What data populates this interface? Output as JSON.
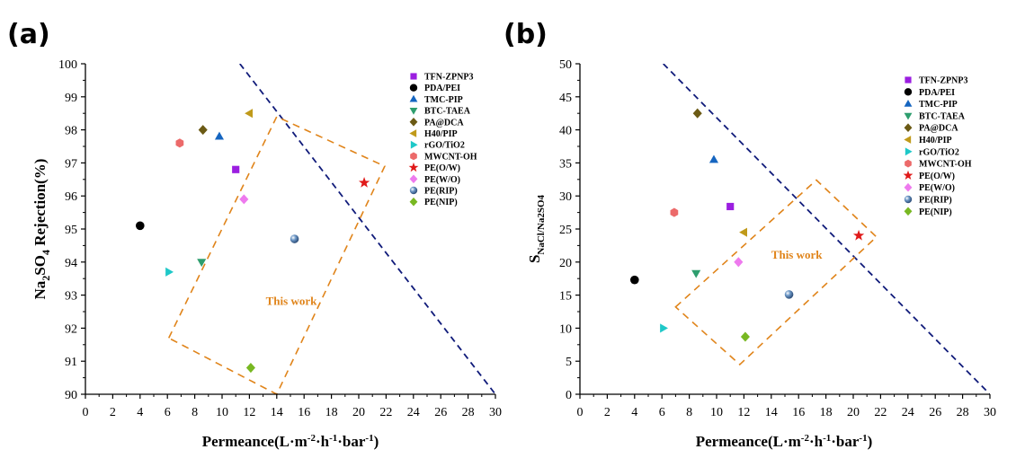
{
  "figure": {
    "legend_entries": [
      {
        "name": "TFN-ZPNP3",
        "color": "#9b1ee0",
        "marker": "square"
      },
      {
        "name": "PDA/PEI",
        "color": "#000000",
        "marker": "circle"
      },
      {
        "name": "TMC-PIP",
        "color": "#1565c0",
        "marker": "triangle-up"
      },
      {
        "name": "BTC-TAEA",
        "color": "#2e9e6e",
        "marker": "triangle-down"
      },
      {
        "name": "PA@DCA",
        "color": "#6b5a14",
        "marker": "diamond"
      },
      {
        "name": "H40/PIP",
        "color": "#c09a1a",
        "marker": "triangle-left"
      },
      {
        "name": "rGO/TiO2",
        "color": "#1ec8c8",
        "marker": "triangle-right"
      },
      {
        "name": "MWCNT-OH",
        "color": "#ec6a6a",
        "marker": "hexagon"
      },
      {
        "name": "PE(O/W)",
        "color": "#e01a1a",
        "marker": "star"
      },
      {
        "name": "PE(W/O)",
        "color": "#ee7aee",
        "marker": "diamond"
      },
      {
        "name": "PE(RIP)",
        "color": "#6c97c6",
        "marker": "sphere"
      },
      {
        "name": "PE(NIP)",
        "color": "#78b822",
        "marker": "diamond"
      }
    ],
    "dashed_line_color": "#101b7a",
    "box_color": "#e0841a"
  },
  "chart_data": [
    {
      "panel": "(a)",
      "type": "scatter",
      "xlabel": "Permeance(L·m⁻²·h⁻¹·bar⁻¹)",
      "ylabel": "Na₂SO₄ Rejection(%)",
      "xlim": [
        0,
        30
      ],
      "ylim": [
        90,
        100
      ],
      "xticks": [
        "0",
        "2",
        "4",
        "6",
        "8",
        "10",
        "12",
        "14",
        "16",
        "18",
        "20",
        "22",
        "24",
        "26",
        "28",
        "30"
      ],
      "yticks": [
        "90",
        "91",
        "92",
        "93",
        "94",
        "95",
        "96",
        "97",
        "98",
        "99",
        "100"
      ],
      "points": [
        {
          "series": "TFN-ZPNP3",
          "x": 11.0,
          "y": 96.8
        },
        {
          "series": "PDA/PEI",
          "x": 4.0,
          "y": 95.1
        },
        {
          "series": "TMC-PIP",
          "x": 9.8,
          "y": 97.8
        },
        {
          "series": "BTC-TAEA",
          "x": 8.5,
          "y": 94.0
        },
        {
          "series": "PA@DCA",
          "x": 8.6,
          "y": 98.0
        },
        {
          "series": "H40/PIP",
          "x": 12.0,
          "y": 98.5
        },
        {
          "series": "rGO/TiO2",
          "x": 6.1,
          "y": 93.7
        },
        {
          "series": "MWCNT-OH",
          "x": 6.9,
          "y": 97.6
        },
        {
          "series": "PE(O/W)",
          "x": 20.4,
          "y": 96.4
        },
        {
          "series": "PE(W/O)",
          "x": 11.6,
          "y": 95.9
        },
        {
          "series": "PE(RIP)",
          "x": 15.3,
          "y": 94.7
        },
        {
          "series": "PE(NIP)",
          "x": 12.1,
          "y": 90.8
        }
      ],
      "trade_off_line": [
        [
          11.3,
          100
        ],
        [
          30,
          90
        ]
      ],
      "highlight_box": [
        [
          6.1,
          91.7
        ],
        [
          14.0,
          98.4
        ],
        [
          21.9,
          96.9
        ],
        [
          14.0,
          90.0
        ]
      ],
      "annotation": {
        "text": "This work",
        "x": 13.2,
        "y": 92.7
      }
    },
    {
      "panel": "(b)",
      "type": "scatter",
      "xlabel": "Permeance(L·m⁻²·h⁻¹·bar⁻¹)",
      "ylabel": "S_NaCl/Na2SO4",
      "xlim": [
        0,
        30
      ],
      "ylim": [
        0,
        50
      ],
      "xticks": [
        "0",
        "2",
        "4",
        "6",
        "8",
        "10",
        "12",
        "14",
        "16",
        "18",
        "20",
        "22",
        "24",
        "26",
        "28",
        "30"
      ],
      "yticks": [
        "0",
        "5",
        "10",
        "15",
        "20",
        "25",
        "30",
        "35",
        "40",
        "45",
        "50"
      ],
      "points": [
        {
          "series": "TFN-ZPNP3",
          "x": 11.0,
          "y": 28.4
        },
        {
          "series": "PDA/PEI",
          "x": 4.0,
          "y": 17.3
        },
        {
          "series": "TMC-PIP",
          "x": 9.8,
          "y": 35.5
        },
        {
          "series": "BTC-TAEA",
          "x": 8.5,
          "y": 18.3
        },
        {
          "series": "PA@DCA",
          "x": 8.6,
          "y": 42.5
        },
        {
          "series": "H40/PIP",
          "x": 12.0,
          "y": 24.5
        },
        {
          "series": "rGO/TiO2",
          "x": 6.1,
          "y": 10.0
        },
        {
          "series": "MWCNT-OH",
          "x": 6.9,
          "y": 27.5
        },
        {
          "series": "PE(O/W)",
          "x": 20.4,
          "y": 24.0
        },
        {
          "series": "PE(W/O)",
          "x": 11.6,
          "y": 20.0
        },
        {
          "series": "PE(RIP)",
          "x": 15.3,
          "y": 15.1
        },
        {
          "series": "PE(NIP)",
          "x": 12.1,
          "y": 8.7
        }
      ],
      "trade_off_line": [
        [
          6.1,
          50
        ],
        [
          30,
          0
        ]
      ],
      "highlight_box": [
        [
          7.0,
          13.2
        ],
        [
          17.3,
          32.4
        ],
        [
          21.7,
          23.8
        ],
        [
          11.7,
          4.5
        ]
      ],
      "annotation": {
        "text": "This work",
        "x": 14.0,
        "y": 20.5
      }
    }
  ]
}
